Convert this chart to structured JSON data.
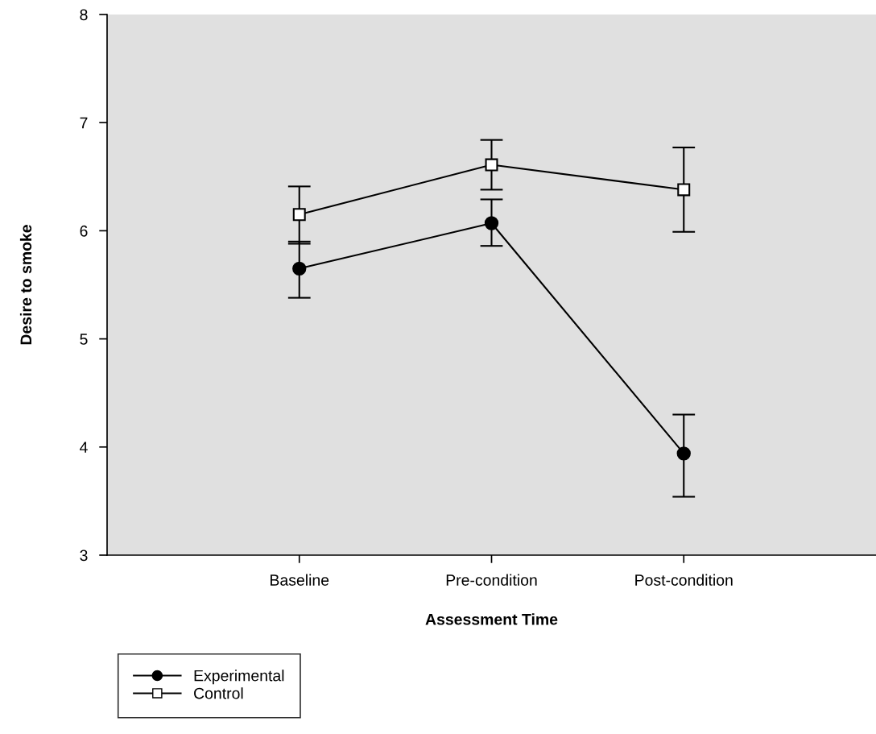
{
  "chart_data": {
    "type": "line",
    "xlabel": "Assessment Time",
    "ylabel": "Desire to smoke",
    "categories": [
      "Baseline",
      "Pre-condition",
      "Post-condition"
    ],
    "series": [
      {
        "name": "Experimental",
        "color": "#000000",
        "marker": "circle",
        "values": [
          5.65,
          6.07,
          3.94
        ],
        "errors": [
          [
            5.38,
            5.9
          ],
          [
            5.86,
            6.29
          ],
          [
            3.54,
            4.3
          ]
        ]
      },
      {
        "name": "Control",
        "color": "#000000",
        "marker": "square",
        "values": [
          6.15,
          6.61,
          6.38
        ],
        "errors": [
          [
            5.88,
            6.41
          ],
          [
            6.38,
            6.84
          ],
          [
            5.99,
            6.77
          ]
        ]
      }
    ],
    "ylim": [
      3,
      8
    ],
    "yticks": [
      3,
      4,
      5,
      6,
      7,
      8
    ],
    "grid": false,
    "legend": "bottom left",
    "line_style": "solid"
  }
}
